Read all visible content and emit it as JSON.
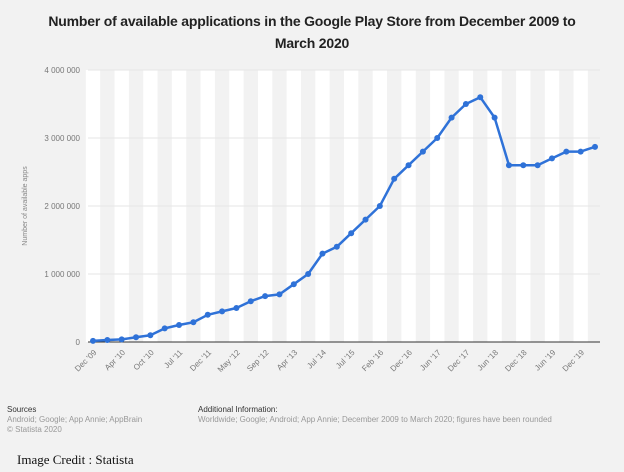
{
  "chart_data": {
    "type": "line",
    "title": "Number of available applications in the Google Play Store from December 2009 to March 2020",
    "ylabel": "Number of available apps",
    "xlabel": "",
    "ylim": [
      0,
      4000000
    ],
    "y_ticks": [
      0,
      1000000,
      2000000,
      3000000,
      4000000
    ],
    "y_tick_labels": [
      "0",
      "1 000 000",
      "2 000 000",
      "3 000 000",
      "4 000 000"
    ],
    "x_tick_labels": [
      "Dec '09",
      "Apr '10",
      "Oct '10",
      "Jul '11",
      "Dec '11",
      "May '12",
      "Sep '12",
      "Apr '13",
      "Jul '14",
      "Jul '15",
      "Feb '16",
      "Dec '16",
      "Jun '17",
      "Dec '17",
      "Jun '18",
      "Dec '18",
      "Jun '19",
      "Dec '19"
    ],
    "values": [
      16000,
      30000,
      38000,
      70000,
      100000,
      200000,
      250000,
      290000,
      400000,
      450000,
      500000,
      600000,
      675000,
      700000,
      850000,
      1000000,
      1300000,
      1400000,
      1600000,
      1800000,
      2000000,
      2400000,
      2600000,
      2800000,
      3000000,
      3300000,
      3500000,
      3600000,
      3300000,
      2600000,
      2600000,
      2600000,
      2700000,
      2800000,
      2800000,
      2870000
    ],
    "grid": true,
    "line_color": "#2f72d8"
  },
  "footer": {
    "sources_heading": "Sources",
    "sources_text": "Android; Google; App Annie; AppBrain",
    "copyright": "© Statista 2020",
    "info_heading": "Additional Information:",
    "info_text": "Worldwide; Google; Android; App Annie; December 2009 to March 2020; figures have been rounded"
  },
  "credit": "Image Credit : Statista"
}
